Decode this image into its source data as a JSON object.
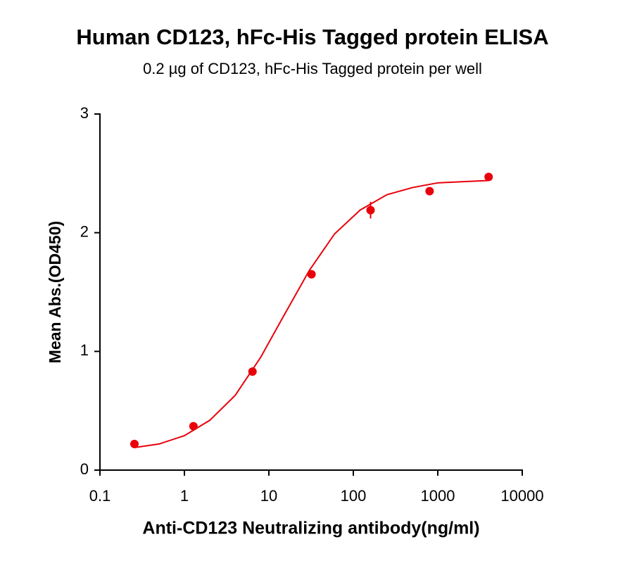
{
  "chart_data": {
    "type": "scatter",
    "title": "Human CD123, hFc-His Tagged protein ELISA",
    "subtitle": "0.2 µg of CD123, hFc-His Tagged protein per well",
    "x_label": "Anti-CD123 Neutralizing antibody(ng/ml)",
    "y_label": "Mean Abs.(OD450)",
    "xscale": "log",
    "xlim": [
      0.1,
      10000
    ],
    "xticks": [
      0.1,
      1,
      10,
      100,
      1000,
      10000
    ],
    "ylim": [
      0,
      3
    ],
    "yticks": [
      0,
      1,
      2,
      3
    ],
    "series": [
      {
        "type": "scatter",
        "color": "#e8000b",
        "x": [
          0.256,
          1.28,
          6.4,
          32,
          160,
          800,
          4000
        ],
        "values": [
          0.22,
          0.37,
          0.83,
          1.65,
          2.19,
          2.35,
          2.47
        ],
        "errors": [
          0,
          0,
          0,
          0,
          0.07,
          0,
          0
        ]
      },
      {
        "type": "line",
        "color": "#e8000b",
        "x": [
          0.256,
          0.5,
          1,
          2,
          4,
          8,
          15,
          30,
          60,
          120,
          250,
          500,
          1000,
          2000,
          4000
        ],
        "values": [
          0.19,
          0.22,
          0.29,
          0.42,
          0.63,
          0.95,
          1.3,
          1.68,
          1.99,
          2.19,
          2.32,
          2.38,
          2.42,
          2.43,
          2.44
        ]
      }
    ]
  }
}
